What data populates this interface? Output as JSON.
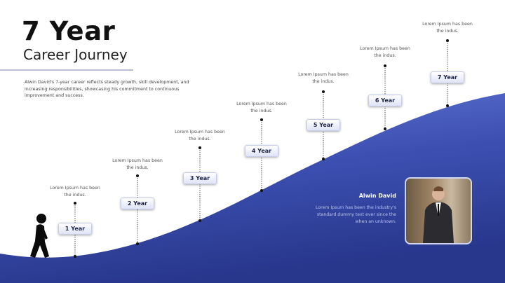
{
  "header": {
    "title": "7 Year",
    "subtitle": "Career Journey",
    "description": "Alwin David's 7-year career reflects steady growth, skill development, and increasing responsibilities, showcasing his commitment to continuous improvement and success."
  },
  "milestones": [
    {
      "label": "1 Year",
      "text": "Lorem Ipsum has been the indus."
    },
    {
      "label": "2 Year",
      "text": "Lorem Ipsum has been the indus."
    },
    {
      "label": "3 Year",
      "text": "Lorem Ipsum has been the indus."
    },
    {
      "label": "4 Year",
      "text": "Lorem Ipsum has been the indus."
    },
    {
      "label": "5 Year",
      "text": "Lorem Ipsum has been the indus."
    },
    {
      "label": "6 Year",
      "text": "Lorem Ipsum has been the indus."
    },
    {
      "label": "7 Year",
      "text": "Lorem Ipsum has been the indus."
    }
  ],
  "profile": {
    "name": "Alwin David",
    "bio": "Lorem Ipsum has been the industry's standard dummy text ever since the when an unknown."
  },
  "colors": {
    "accent": "#3a4cae",
    "accent_light": "#6077d4",
    "accent_dark": "#27358a"
  }
}
